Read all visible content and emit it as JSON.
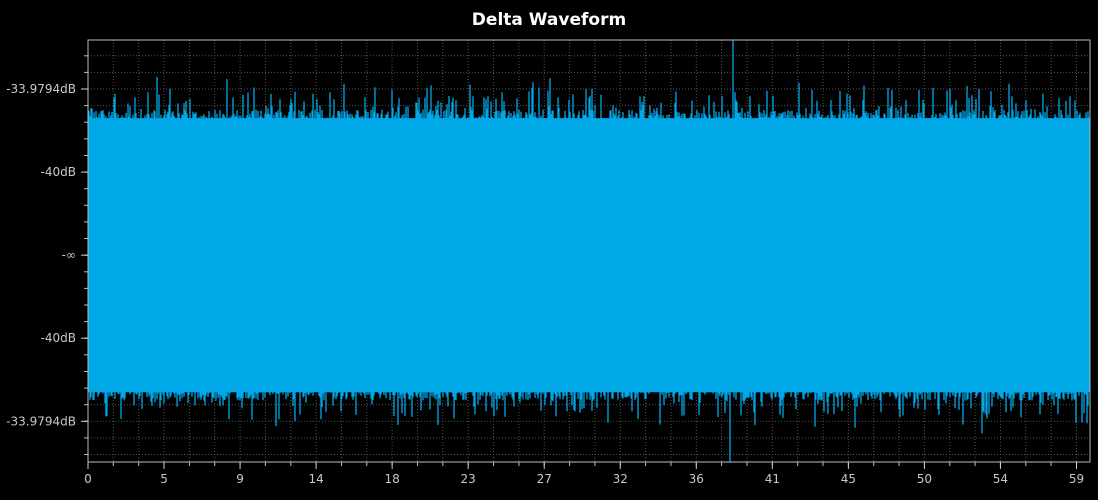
{
  "chart_data": {
    "type": "area",
    "title": "Delta Waveform",
    "xlabel": "",
    "ylabel": "",
    "x_tick_labels": [
      "0",
      "5",
      "9",
      "14",
      "18",
      "23",
      "27",
      "32",
      "36",
      "41",
      "45",
      "50",
      "54",
      "59"
    ],
    "x_tick_values": [
      0,
      4.5,
      9,
      13.5,
      18,
      22.5,
      27,
      31.5,
      36,
      40.5,
      45,
      49.5,
      54,
      58.5
    ],
    "xlim": [
      0,
      59.3
    ],
    "y_tick_labels": [
      "-33.9794dB",
      "-40dB",
      "-∞",
      "-40dB",
      "-33.9794dB"
    ],
    "y_tick_values": [
      0.02,
      0.01,
      0,
      -0.01,
      -0.02
    ],
    "ylim": [
      -0.0249,
      0.0259
    ],
    "series": [
      {
        "color": "#00a8e8",
        "envelope_typical_amplitude": 0.0165,
        "envelope_range": [
          -0.0249,
          0.0259
        ]
      }
    ],
    "grid": true,
    "background": "#000000",
    "grid_color": "#555555"
  }
}
